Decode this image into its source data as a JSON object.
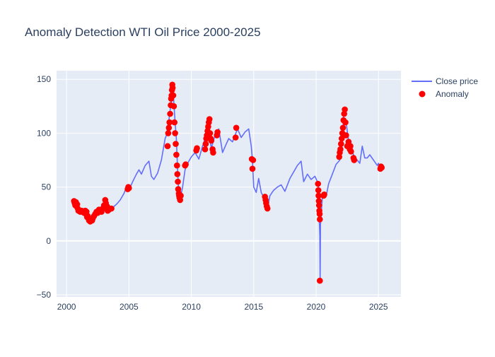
{
  "chart_data": {
    "type": "line",
    "title": "Anomaly Detection WTI Oil Price 2000-2025",
    "xlabel": "",
    "ylabel": "",
    "xlim": [
      1999.2,
      2026.8
    ],
    "ylim": [
      -52,
      158
    ],
    "x_ticks": [
      2000,
      2005,
      2010,
      2015,
      2020,
      2025
    ],
    "y_ticks": [
      -50,
      0,
      50,
      100,
      150
    ],
    "grid": true,
    "legend_position": "top-right",
    "colors": {
      "line": "#636efa",
      "anomaly": "#ff0000",
      "plot_bg": "#e5ecf6",
      "title": "#2a3f5f"
    },
    "series": [
      {
        "name": "Close price",
        "type": "line",
        "x": [
          2000.7,
          2000.9,
          2001.0,
          2001.2,
          2001.5,
          2001.7,
          2001.9,
          2002.0,
          2002.2,
          2002.5,
          2002.8,
          2003.0,
          2003.2,
          2003.4,
          2003.7,
          2004.0,
          2004.3,
          2004.6,
          2004.8,
          2005.0,
          2005.3,
          2005.6,
          2005.8,
          2006.0,
          2006.3,
          2006.6,
          2006.8,
          2007.0,
          2007.3,
          2007.6,
          2007.9,
          2008.0,
          2008.2,
          2008.4,
          2008.5,
          2008.6,
          2008.7,
          2008.8,
          2008.9,
          2009.0,
          2009.1,
          2009.3,
          2009.5,
          2009.7,
          2010.0,
          2010.3,
          2010.6,
          2010.9,
          2011.1,
          2011.3,
          2011.6,
          2011.9,
          2012.2,
          2012.5,
          2012.8,
          2013.0,
          2013.3,
          2013.7,
          2014.0,
          2014.3,
          2014.6,
          2014.8,
          2014.9,
          2015.0,
          2015.2,
          2015.4,
          2015.6,
          2015.9,
          2016.1,
          2016.3,
          2016.6,
          2016.9,
          2017.2,
          2017.5,
          2017.9,
          2018.2,
          2018.5,
          2018.8,
          2019.0,
          2019.3,
          2019.6,
          2019.9,
          2020.1,
          2020.2,
          2020.25,
          2020.3,
          2020.32,
          2020.35,
          2020.5,
          2020.8,
          2021.0,
          2021.3,
          2021.6,
          2021.9,
          2022.1,
          2022.2,
          2022.4,
          2022.6,
          2022.8,
          2023.0,
          2023.3,
          2023.5,
          2023.7,
          2023.9,
          2024.1,
          2024.3,
          2024.6,
          2024.9,
          2025.0,
          2025.2
        ],
        "y": [
          36,
          33,
          30,
          28,
          27,
          26,
          22,
          20,
          25,
          27,
          29,
          33,
          35,
          28,
          31,
          34,
          38,
          44,
          50,
          47,
          55,
          62,
          66,
          62,
          70,
          74,
          60,
          57,
          63,
          75,
          95,
          98,
          112,
          130,
          145,
          128,
          110,
          95,
          65,
          42,
          38,
          50,
          66,
          72,
          78,
          82,
          76,
          88,
          95,
          110,
          86,
          98,
          104,
          82,
          90,
          95,
          92,
          104,
          96,
          101,
          104,
          88,
          75,
          50,
          45,
          58,
          45,
          38,
          30,
          42,
          47,
          50,
          52,
          46,
          58,
          64,
          70,
          74,
          55,
          62,
          57,
          60,
          55,
          48,
          22,
          5,
          -37,
          15,
          40,
          41,
          53,
          62,
          71,
          75,
          92,
          115,
          110,
          93,
          86,
          80,
          75,
          72,
          88,
          77,
          77,
          80,
          75,
          70,
          72,
          68
        ]
      },
      {
        "name": "Anomaly",
        "type": "scatter",
        "x": [
          2000.6,
          2000.65,
          2000.7,
          2000.75,
          2000.8,
          2000.85,
          2000.9,
          2000.95,
          2001.0,
          2001.1,
          2001.2,
          2001.3,
          2001.4,
          2001.5,
          2001.55,
          2001.6,
          2001.65,
          2001.7,
          2001.75,
          2001.8,
          2001.85,
          2001.9,
          2001.95,
          2002.0,
          2002.05,
          2002.1,
          2002.2,
          2002.3,
          2002.4,
          2002.5,
          2002.6,
          2002.7,
          2002.8,
          2002.9,
          2003.0,
          2003.1,
          2003.15,
          2003.2,
          2003.25,
          2003.3,
          2003.4,
          2003.6,
          2004.9,
          2004.95,
          2005.0,
          2008.1,
          2008.15,
          2008.2,
          2008.25,
          2008.3,
          2008.35,
          2008.38,
          2008.42,
          2008.45,
          2008.48,
          2008.5,
          2008.55,
          2008.6,
          2008.65,
          2008.7,
          2008.75,
          2008.8,
          2008.85,
          2008.88,
          2008.92,
          2008.95,
          2009.0,
          2009.02,
          2009.05,
          2009.1,
          2009.15,
          2009.5,
          2009.55,
          2010.4,
          2010.45,
          2011.1,
          2011.15,
          2011.2,
          2011.25,
          2011.3,
          2011.35,
          2011.4,
          2011.45,
          2011.5,
          2011.55,
          2011.6,
          2011.7,
          2011.75,
          2012.05,
          2012.1,
          2013.55,
          2013.6,
          2014.85,
          2014.9,
          2014.95,
          2015.9,
          2015.95,
          2016.0,
          2016.05,
          2016.1,
          2020.15,
          2020.18,
          2020.2,
          2020.22,
          2020.24,
          2020.26,
          2020.28,
          2020.3,
          2020.3,
          2020.6,
          2020.65,
          2021.85,
          2021.9,
          2021.95,
          2022.0,
          2022.05,
          2022.1,
          2022.15,
          2022.2,
          2022.25,
          2022.3,
          2022.35,
          2022.4,
          2022.5,
          2022.6,
          2022.7,
          2022.75,
          2022.8,
          2023.0,
          2023.05,
          2025.15,
          2025.2,
          2025.25
        ],
        "y": [
          37,
          35,
          33,
          36,
          32,
          34,
          30,
          28,
          28,
          27,
          28,
          27,
          26,
          28,
          25,
          27,
          22,
          23,
          21,
          19,
          20,
          18,
          19,
          20,
          19,
          21,
          23,
          25,
          27,
          26,
          29,
          28,
          27,
          30,
          33,
          38,
          35,
          30,
          32,
          28,
          29,
          30,
          48,
          50,
          49,
          88,
          100,
          105,
          110,
          118,
          126,
          132,
          135,
          140,
          145,
          142,
          135,
          125,
          110,
          100,
          90,
          80,
          70,
          62,
          55,
          48,
          44,
          42,
          40,
          38,
          42,
          70,
          71,
          84,
          86,
          85,
          90,
          95,
          98,
          102,
          106,
          110,
          113,
          100,
          95,
          93,
          85,
          82,
          98,
          101,
          96,
          105,
          76,
          67,
          75,
          41,
          38,
          35,
          32,
          30,
          53,
          47,
          42,
          37,
          33,
          28,
          25,
          20,
          -37,
          42,
          43,
          78,
          82,
          85,
          90,
          95,
          100,
          105,
          112,
          118,
          122,
          110,
          98,
          88,
          92,
          85,
          88,
          83,
          77,
          75,
          67,
          69,
          68
        ]
      }
    ]
  }
}
